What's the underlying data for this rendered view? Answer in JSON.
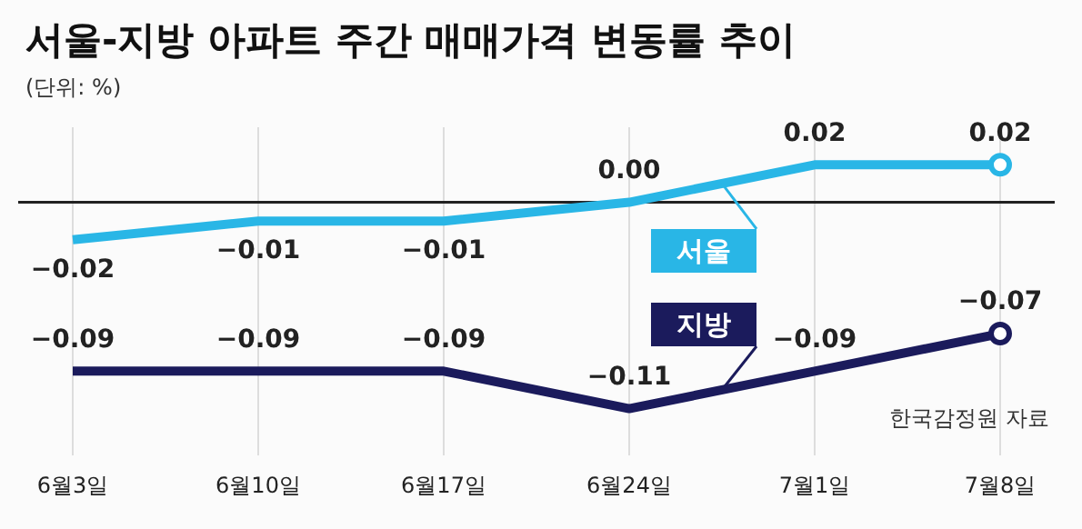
{
  "chart_data": {
    "type": "line",
    "title": "서울-지방 아파트 주간 매매가격 변동률 추이",
    "subtitle": "(단위: %)",
    "annotations": [
      "한국감정원 자료"
    ],
    "categories": [
      "6월3일",
      "6월10일",
      "6월17일",
      "6월24일",
      "7월1일",
      "7월8일"
    ],
    "series": [
      {
        "name": "서울",
        "color": "#29b6e6",
        "values": [
          -0.02,
          -0.01,
          -0.01,
          0.0,
          0.02,
          0.02
        ],
        "value_labels": [
          "−0.02",
          "−0.01",
          "−0.01",
          "0.00",
          "0.02",
          "0.02"
        ]
      },
      {
        "name": "지방",
        "color": "#1b1b5c",
        "values": [
          -0.09,
          -0.09,
          -0.09,
          -0.11,
          -0.09,
          -0.07
        ],
        "value_labels": [
          "−0.09",
          "−0.09",
          "−0.09",
          "−0.11",
          "−0.09",
          "−0.07"
        ]
      }
    ],
    "ylim": [
      -0.135,
      0.04
    ],
    "tick_labels": "x",
    "grid": "x",
    "legend": "right",
    "line_style": "solid",
    "ref_lines": [
      {
        "axis": "y",
        "value": 0,
        "color": "#222222"
      }
    ]
  }
}
